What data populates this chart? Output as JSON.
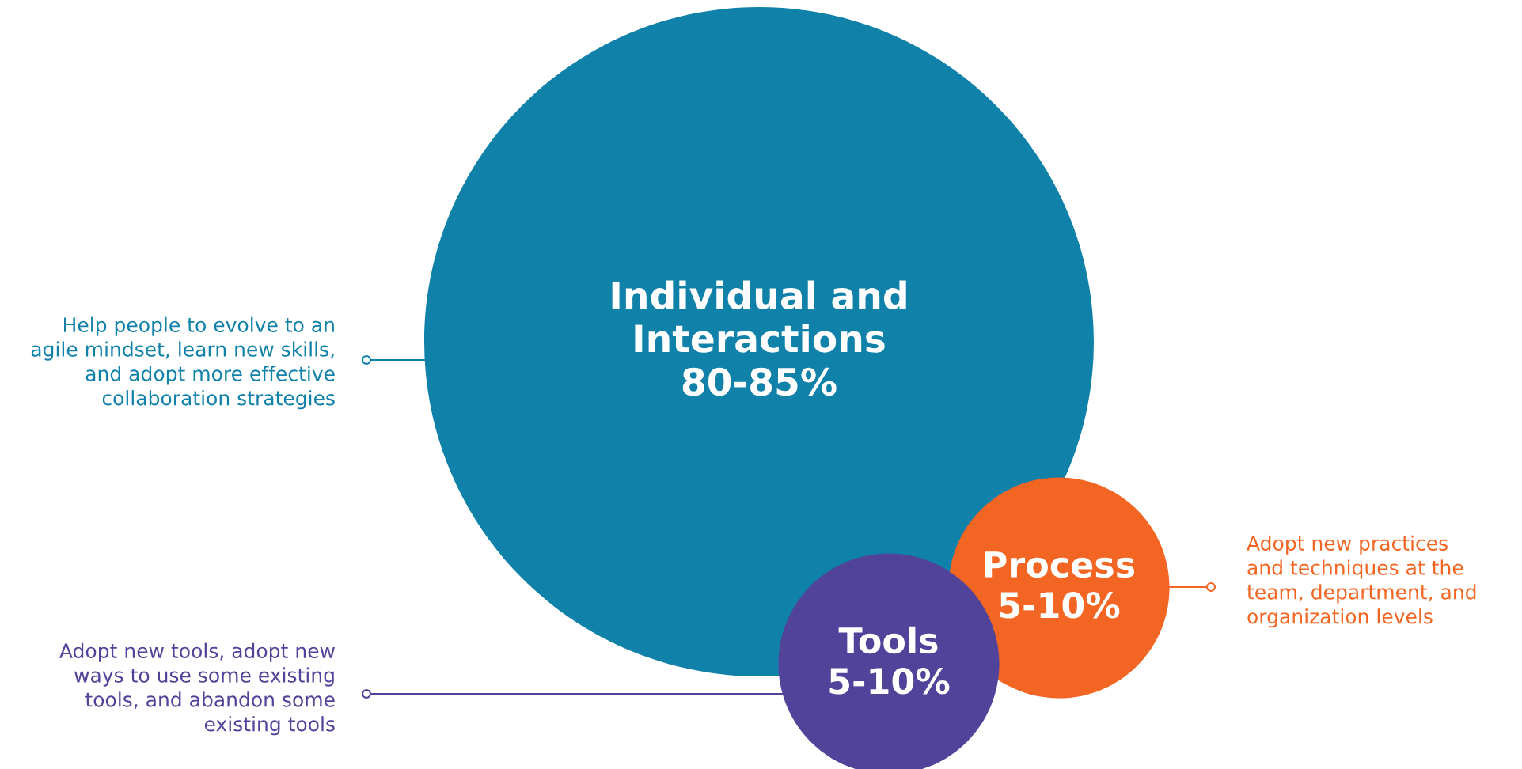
{
  "chart_data": {
    "type": "other",
    "categories": [
      "Individual and\nInteractions",
      "Process",
      "Tools"
    ],
    "values": [
      80,
      5,
      5
    ],
    "value_labels": [
      "80-85%",
      "5-10%",
      "5-10%"
    ],
    "colors": [
      "#1081a9",
      "#f26522",
      "#52439a"
    ],
    "annotations": [
      "Help people to evolve to an\nagile mindset, learn new skills,\nand adopt more effective\ncollaboration strategies",
      "Adopt new practices\nand techniques at the\nteam, department, and\norganization levels",
      "Adopt new tools, adopt new\nways to use some existing\ntools, and abandon some\nexisting tools"
    ]
  }
}
